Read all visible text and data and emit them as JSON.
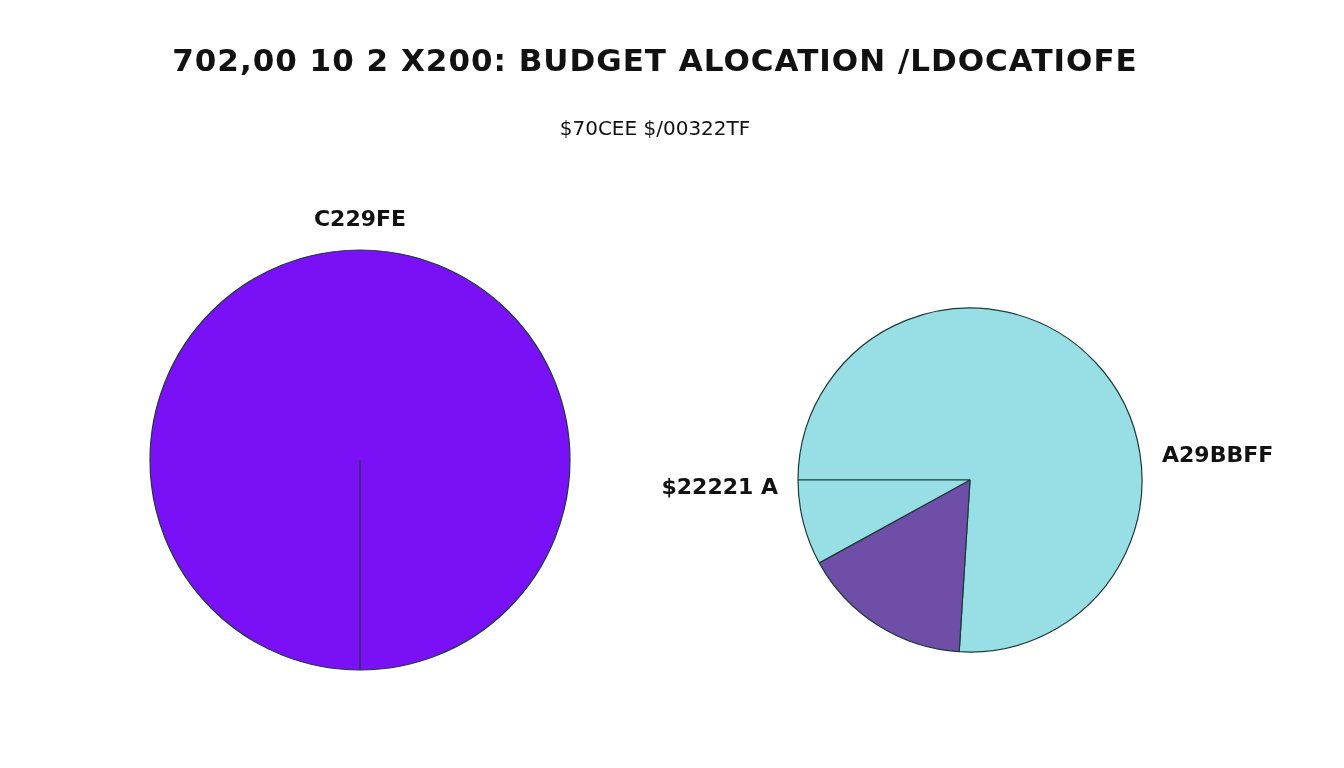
{
  "chart_data": [
    {
      "type": "pie",
      "title": "702,00 10 2 X200: BUDGET ALOCATION /LDOCATIOFE",
      "subtitle": "$70CEE $/00322TF",
      "categories": [
        "C229FE"
      ],
      "values": [
        100
      ],
      "colors": [
        "#7a10f5"
      ]
    },
    {
      "type": "pie",
      "categories": [
        "A29BBFF",
        null,
        "$22221 A"
      ],
      "values": [
        76,
        16,
        8
      ],
      "colors": [
        "#97dfe4",
        "#6e4ea6",
        "#97dfe4"
      ]
    }
  ]
}
